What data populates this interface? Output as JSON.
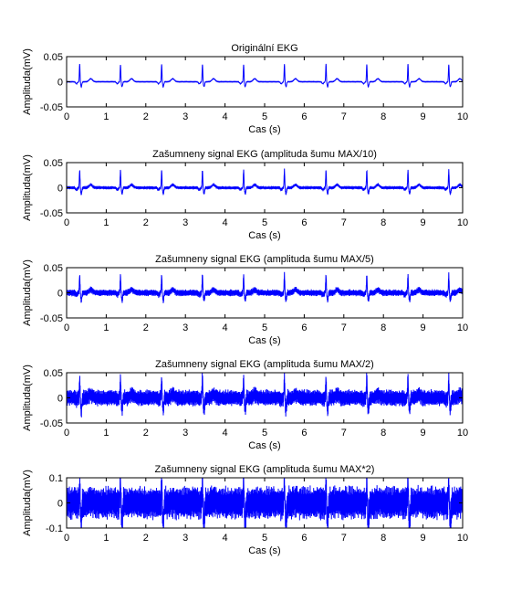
{
  "figure": {
    "background": "#ffffff",
    "line_color": "#0000ff"
  },
  "chart_data": [
    {
      "type": "line",
      "title": "Originální EKG",
      "xlabel": "Cas (s)",
      "ylabel": "Amplituda(mV)",
      "xlim": [
        0,
        10
      ],
      "ylim": [
        -0.05,
        0.05
      ],
      "xticks": [
        "0",
        "1",
        "2",
        "3",
        "4",
        "5",
        "6",
        "7",
        "8",
        "9",
        "10"
      ],
      "yticks": [
        "0.05",
        "0",
        "-0.05"
      ],
      "grid": false,
      "series": [
        {
          "color": "#0000ff",
          "noise_amplitude": 0,
          "r_peak_times": [
            0.33,
            1.36,
            2.4,
            3.43,
            4.47,
            5.5,
            6.55,
            7.58,
            8.62,
            9.65
          ],
          "r_peak_value": 0.035,
          "s_trough_value": -0.01,
          "baseline": 0.0
        }
      ]
    },
    {
      "type": "line",
      "title": "Zašumneny signal EKG (amplituda šumu MAX/10)",
      "xlabel": "Cas (s)",
      "ylabel": "Amplituda(mV)",
      "xlim": [
        0,
        10
      ],
      "ylim": [
        -0.05,
        0.05
      ],
      "xticks": [
        "0",
        "1",
        "2",
        "3",
        "4",
        "5",
        "6",
        "7",
        "8",
        "9",
        "10"
      ],
      "yticks": [
        "0.05",
        "0",
        "-0.05"
      ],
      "grid": false,
      "series": [
        {
          "color": "#0000ff",
          "noise_amplitude": 0.0035,
          "r_peak_times": [
            0.33,
            1.36,
            2.4,
            3.43,
            4.47,
            5.5,
            6.55,
            7.58,
            8.62,
            9.65
          ],
          "r_peak_value": 0.035,
          "s_trough_value": -0.012,
          "baseline": 0.0
        }
      ]
    },
    {
      "type": "line",
      "title": "Zašumneny signal EKG (amplituda šumu MAX/5)",
      "xlabel": "Cas (s)",
      "ylabel": "Amplituda(mV)",
      "xlim": [
        0,
        10
      ],
      "ylim": [
        -0.05,
        0.05
      ],
      "xticks": [
        "0",
        "1",
        "2",
        "3",
        "4",
        "5",
        "6",
        "7",
        "8",
        "9",
        "10"
      ],
      "yticks": [
        "0.05",
        "0",
        "-0.05"
      ],
      "grid": false,
      "series": [
        {
          "color": "#0000ff",
          "noise_amplitude": 0.007,
          "r_peak_times": [
            0.33,
            1.36,
            2.4,
            3.43,
            4.47,
            5.5,
            6.55,
            7.58,
            8.62,
            9.65
          ],
          "r_peak_value": 0.035,
          "s_trough_value": -0.015,
          "baseline": 0.0
        }
      ]
    },
    {
      "type": "line",
      "title": "Zašumneny signal EKG (amplituda šumu MAX/2)",
      "xlabel": "Cas (s)",
      "ylabel": "Amplituda(mV)",
      "xlim": [
        0,
        10
      ],
      "ylim": [
        -0.05,
        0.05
      ],
      "xticks": [
        "0",
        "1",
        "2",
        "3",
        "4",
        "5",
        "6",
        "7",
        "8",
        "9",
        "10"
      ],
      "yticks": [
        "0.05",
        "0",
        "-0.05"
      ],
      "grid": false,
      "series": [
        {
          "color": "#0000ff",
          "noise_amplitude": 0.0175,
          "r_peak_times": [
            0.33,
            1.36,
            2.4,
            3.43,
            4.47,
            5.5,
            6.55,
            7.58,
            8.62,
            9.65
          ],
          "r_peak_value": 0.04,
          "s_trough_value": -0.025,
          "baseline": 0.0
        }
      ]
    },
    {
      "type": "line",
      "title": "Zašumneny signal EKG (amplituda šumu MAX*2)",
      "xlabel": "Cas (s)",
      "ylabel": "Amplituda(mV)",
      "xlim": [
        0,
        10
      ],
      "ylim": [
        -0.1,
        0.1
      ],
      "xticks": [
        "0",
        "1",
        "2",
        "3",
        "4",
        "5",
        "6",
        "7",
        "8",
        "9",
        "10"
      ],
      "yticks": [
        "0.1",
        "0",
        "-0.1"
      ],
      "grid": false,
      "series": [
        {
          "color": "#0000ff",
          "noise_amplitude": 0.07,
          "r_peak_times": [
            0.33,
            1.36,
            2.4,
            3.43,
            4.47,
            5.5,
            6.55,
            7.58,
            8.62,
            9.65
          ],
          "r_peak_value": 0.085,
          "s_trough_value": -0.085,
          "baseline": 0.0
        }
      ]
    }
  ]
}
